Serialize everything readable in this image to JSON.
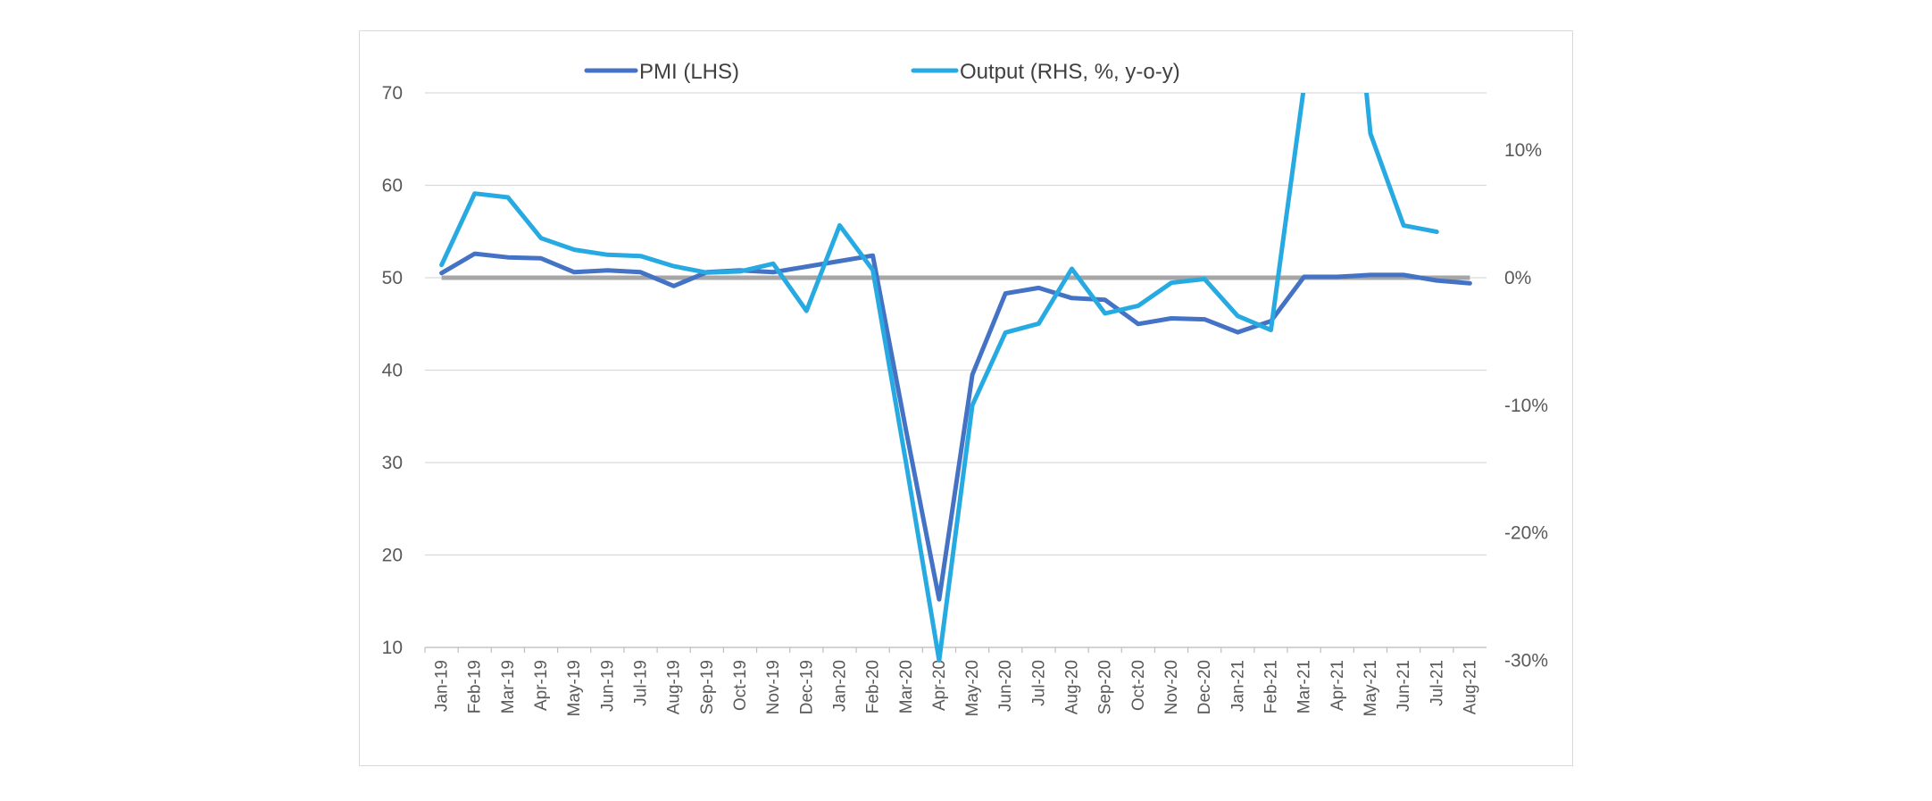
{
  "chart_data": {
    "type": "line",
    "categories": [
      "Jan-19",
      "Feb-19",
      "Mar-19",
      "Apr-19",
      "May-19",
      "Jun-19",
      "Jul-19",
      "Aug-19",
      "Sep-19",
      "Oct-19",
      "Nov-19",
      "Dec-19",
      "Jan-20",
      "Feb-20",
      "Mar-20",
      "Apr-20",
      "May-20",
      "Jun-20",
      "Jul-20",
      "Aug-20",
      "Sep-20",
      "Oct-20",
      "Nov-20",
      "Dec-20",
      "Jan-21",
      "Feb-21",
      "Mar-21",
      "Apr-21",
      "May-21",
      "Jun-21",
      "Jul-21",
      "Aug-21"
    ],
    "series": [
      {
        "name": "PMI (LHS)",
        "axis": "left",
        "color": "#4472C4",
        "values": [
          50.5,
          52.6,
          52.2,
          52.1,
          50.6,
          50.8,
          50.6,
          49.1,
          50.6,
          50.8,
          50.6,
          51.2,
          51.8,
          52.4,
          33.5,
          15.2,
          39.5,
          48.3,
          48.9,
          47.8,
          47.6,
          45.0,
          45.6,
          45.5,
          44.1,
          45.3,
          50.1,
          50.1,
          50.3,
          50.3,
          49.7,
          49.4
        ]
      },
      {
        "name": "Output (RHS, %, y-o-y)",
        "axis": "right",
        "color": "#27AAE1",
        "values": [
          1.0,
          6.6,
          6.3,
          3.1,
          2.2,
          1.8,
          1.7,
          0.9,
          0.4,
          0.5,
          1.1,
          -2.6,
          4.1,
          0.6,
          -14.5,
          -30.0,
          -10.0,
          -4.3,
          -3.6,
          0.7,
          -2.8,
          -2.2,
          -0.4,
          -0.1,
          -3.0,
          -4.1,
          15.0,
          null,
          11.3,
          4.1,
          3.6,
          null
        ],
        "offscale_note": "Line exceeds the top of the chart between Mar-21 and May-21"
      }
    ],
    "y_left": {
      "ylim": [
        10,
        70
      ],
      "ticks": [
        "10",
        "20",
        "30",
        "40",
        "50",
        "60",
        "70"
      ]
    },
    "y_right": {
      "ylim": [
        -30,
        15
      ],
      "ticks": [
        "-30%",
        "-20%",
        "-10%",
        "0%",
        "10%"
      ]
    },
    "reference_line": {
      "value_left": 50,
      "color": "#A6A6A6"
    },
    "title": "",
    "xlabel": "",
    "ylabel": "",
    "grid": true,
    "legend": {
      "position": "top",
      "items": [
        "PMI (LHS)",
        "Output (RHS, %, y-o-y)"
      ]
    }
  }
}
